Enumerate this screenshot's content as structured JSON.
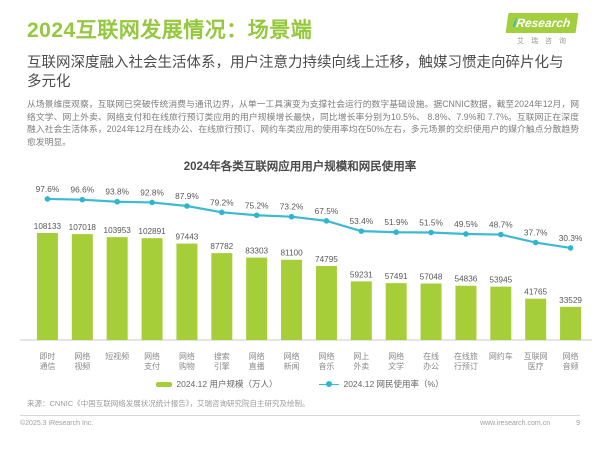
{
  "page": {
    "title": "2024互联网发展情况：场景端",
    "subtitle": "互联网深度融入社会生活体系，用户注意力持续向线上迁移，触媒习惯走向碎片化与多元化",
    "body": "从场景维度观察，互联网已突破传统消费与通讯边界，从单一工具演变为支撑社会运行的数字基础设施。据CNNIC数据，截至2024年12月，网络文学、网上外卖、网络支付和在线旅行预订类应用的用户规模增长最快，同比增长率分别为10.5%、 8.8%、7.9%和 7.7%。互联网正在深度融入社会生活体系，2024年12月在线办公、在线旅行预订、网约车类应用的使用率均在50%左右，多元场景的交织使用户的媒介触点分散趋势愈发明显。"
  },
  "logo": {
    "brand_i": "i",
    "brand_rest": "Research",
    "brand_cn": "艾瑞咨询"
  },
  "colors": {
    "title_green": "#94c83d",
    "bar_green": "#a6ce39",
    "line_cyan": "#3db9d3",
    "dot_cyan": "#2eb6d0",
    "label_gray": "#595757"
  },
  "chart_data": {
    "type": "bar",
    "title": "2024年各类互联网应用用户规模和网民使用率",
    "categories": [
      "即时通信",
      "网络视频",
      "短视频",
      "网络支付",
      "网络购物",
      "搜索引擎",
      "网络直播",
      "网络新闻",
      "网络音乐",
      "网上外卖",
      "网络文学",
      "在线办公",
      "在线旅行预订",
      "网约车",
      "互联网医疗",
      "网络音频"
    ],
    "series": [
      {
        "name": "2024.12 用户规模（万人）",
        "type": "bar",
        "color": "#a6ce39",
        "values": [
          108133,
          107018,
          103953,
          102891,
          97443,
          87782,
          83303,
          81100,
          74795,
          59231,
          57491,
          57048,
          54836,
          53945,
          41765,
          33529
        ]
      },
      {
        "name": "2024.12 网民使用率（%）",
        "type": "line",
        "color": "#3db9d3",
        "values": [
          97.6,
          96.6,
          93.8,
          92.8,
          87.9,
          79.2,
          75.2,
          73.2,
          67.5,
          53.4,
          51.9,
          51.5,
          49.5,
          48.7,
          37.7,
          30.3
        ]
      }
    ],
    "bar_ylim": [
      0,
      110000
    ],
    "line_ylim": [
      0,
      100
    ],
    "grid": false,
    "legend_position": "bottom",
    "xlabel": "",
    "ylabel": ""
  },
  "footer": {
    "source": "来源：CNNIC《中国互联网络发展状况统计报告》，艾瑞咨询研究院自主研究及绘制。",
    "copyright": "©2025.3 iResearch Inc.",
    "website": "www.iresearch.com.cn",
    "page_number": "9"
  }
}
